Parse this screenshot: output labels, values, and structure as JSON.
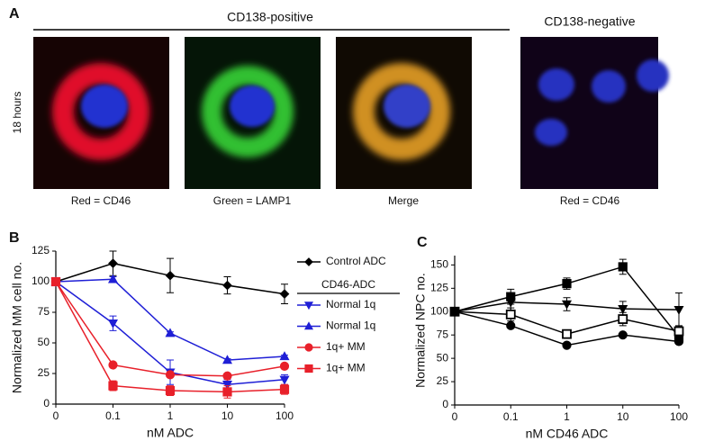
{
  "panel_a": {
    "letter": "A",
    "group_positive": "CD138-positive",
    "group_negative": "CD138-negative",
    "time": "18 hours",
    "captions": [
      "Red = CD46",
      "Green = LAMP1",
      "Merge",
      "Red = CD46"
    ]
  },
  "chart_data": [
    {
      "type": "line",
      "panel_label": "B",
      "x_label": "nM ADC",
      "y_label": "Normalized MM cell no.",
      "categories": [
        "0",
        "0.1",
        "1",
        "10",
        "100"
      ],
      "ylim": [
        0,
        125
      ],
      "yticks": [
        0,
        25,
        50,
        75,
        100,
        125
      ],
      "legend_group_title": "CD46-ADC",
      "legend": "right",
      "series": [
        {
          "name": "Control ADC",
          "color": "#000000",
          "marker": "diamond",
          "values": [
            100,
            115,
            105,
            97,
            90
          ],
          "errors": [
            0,
            10,
            14,
            7,
            8
          ]
        },
        {
          "name": "Normal 1q",
          "color": "#1f1fd6",
          "marker": "triangle-down",
          "values": [
            100,
            66,
            26,
            16,
            20
          ],
          "errors": [
            0,
            6,
            10,
            4,
            4
          ]
        },
        {
          "name": "Normal 1q",
          "color": "#1f1fd6",
          "marker": "triangle-up",
          "values": [
            100,
            102,
            58,
            36,
            39
          ],
          "errors": [
            0,
            2,
            1,
            1,
            1
          ]
        },
        {
          "name": "1q+ MM",
          "color": "#e8202a",
          "marker": "circle",
          "values": [
            100,
            32,
            24,
            23,
            31
          ],
          "errors": [
            0,
            1,
            1,
            1,
            1
          ]
        },
        {
          "name": "1q+ MM",
          "color": "#e8202a",
          "marker": "square",
          "values": [
            100,
            15,
            11,
            10,
            12
          ],
          "errors": [
            0,
            4,
            4,
            5,
            4
          ]
        }
      ]
    },
    {
      "type": "line",
      "panel_label": "C",
      "x_label": "nM CD46 ADC",
      "y_label": "Normalized NPC no.",
      "categories": [
        "0",
        "0.1",
        "1",
        "10",
        "100"
      ],
      "ylim": [
        0,
        160
      ],
      "yticks": [
        0,
        25,
        50,
        75,
        100,
        125,
        150
      ],
      "series": [
        {
          "color": "#000000",
          "marker": "square",
          "values": [
            100,
            116,
            130,
            148,
            73
          ],
          "errors": [
            0,
            8,
            6,
            8,
            4
          ]
        },
        {
          "color": "#000000",
          "marker": "triangle-down",
          "values": [
            100,
            110,
            108,
            103,
            102
          ],
          "errors": [
            0,
            10,
            7,
            8,
            18
          ]
        },
        {
          "color": "#000000",
          "marker": "square-open",
          "values": [
            100,
            97,
            76,
            92,
            79
          ],
          "errors": [
            0,
            7,
            4,
            7,
            6
          ]
        },
        {
          "color": "#000000",
          "marker": "circle",
          "values": [
            100,
            85,
            64,
            75,
            68
          ],
          "errors": [
            0,
            1,
            1,
            1,
            1
          ]
        }
      ]
    }
  ]
}
